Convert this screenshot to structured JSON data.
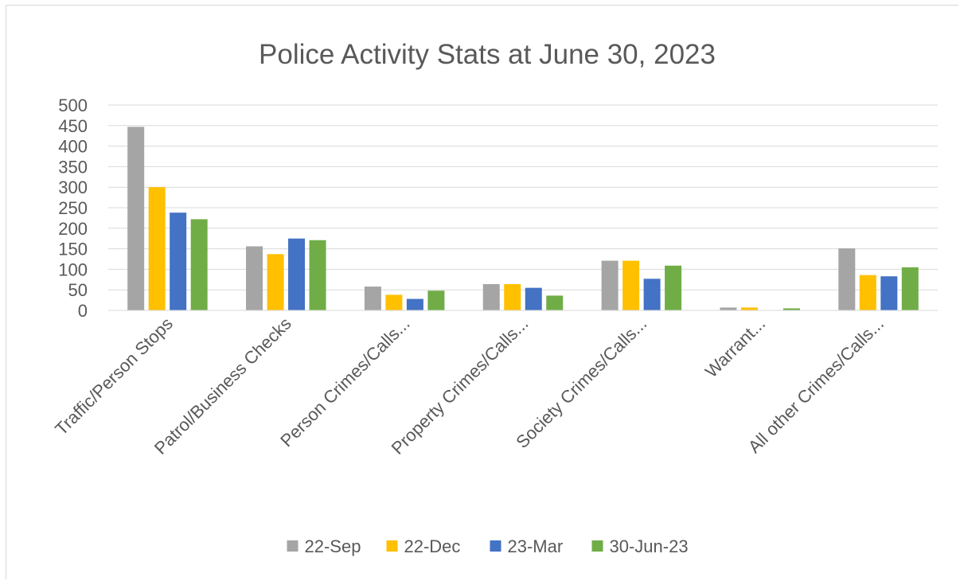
{
  "chart_data": {
    "type": "bar",
    "title": "Police Activity Stats at June 30, 2023",
    "xlabel": "",
    "ylabel": "",
    "ylim": [
      0,
      500
    ],
    "yticks": [
      0,
      50,
      100,
      150,
      200,
      250,
      300,
      350,
      400,
      450,
      500
    ],
    "grid": true,
    "legend_position": "bottom",
    "categories": [
      "Traffic/Person Stops",
      "Patrol/Business Checks",
      "Person Crimes/Calls...",
      "Property Crimes/Calls...",
      "Society Crimes/Calls...",
      "Warrant...",
      "All other Crimes/Calls..."
    ],
    "series": [
      {
        "name": "22-Sep",
        "color": "#a5a5a5",
        "values": [
          447,
          156,
          58,
          64,
          121,
          7,
          151
        ]
      },
      {
        "name": "22-Dec",
        "color": "#ffc000",
        "values": [
          300,
          137,
          38,
          64,
          121,
          7,
          86
        ]
      },
      {
        "name": "23-Mar",
        "color": "#4472c4",
        "values": [
          238,
          175,
          28,
          55,
          77,
          0,
          83
        ]
      },
      {
        "name": "30-Jun-23",
        "color": "#70ad47",
        "values": [
          222,
          171,
          48,
          36,
          109,
          5,
          105
        ]
      }
    ]
  }
}
